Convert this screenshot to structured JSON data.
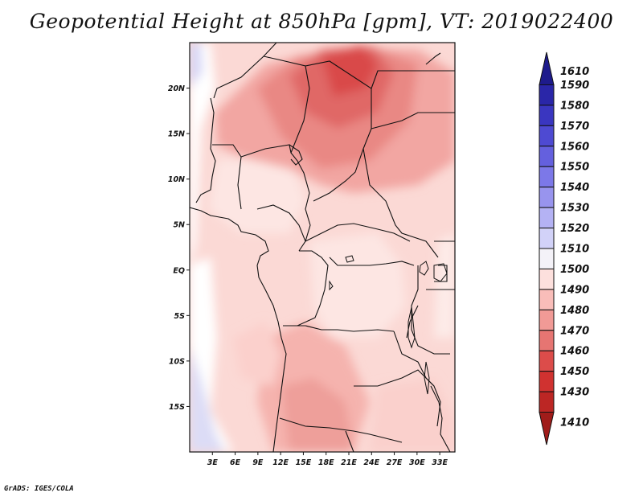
{
  "title": "Geopotential Height at 850hPa [gpm], VT: 2019022400",
  "footer": "GrADS: IGES/COLA",
  "map": {
    "lon_range": [
      0,
      35
    ],
    "lat_range": [
      -20,
      25
    ],
    "lat_ticks": [
      {
        "value": 20,
        "label": "20N"
      },
      {
        "value": 15,
        "label": "15N"
      },
      {
        "value": 10,
        "label": "10N"
      },
      {
        "value": 5,
        "label": "5N"
      },
      {
        "value": 0,
        "label": "EQ"
      },
      {
        "value": -5,
        "label": "5S"
      },
      {
        "value": -10,
        "label": "10S"
      },
      {
        "value": -15,
        "label": "15S"
      }
    ],
    "lon_ticks": [
      {
        "value": 3,
        "label": "3E"
      },
      {
        "value": 6,
        "label": "6E"
      },
      {
        "value": 9,
        "label": "9E"
      },
      {
        "value": 12,
        "label": "12E"
      },
      {
        "value": 15,
        "label": "15E"
      },
      {
        "value": 18,
        "label": "18E"
      },
      {
        "value": 21,
        "label": "21E"
      },
      {
        "value": 24,
        "label": "24E"
      },
      {
        "value": 27,
        "label": "27E"
      },
      {
        "value": 30,
        "label": "30E"
      },
      {
        "value": 33,
        "label": "33E"
      }
    ]
  },
  "colorbar": {
    "levels": [
      {
        "label": "1610",
        "color": "#1e1b8c"
      },
      {
        "label": "1590",
        "color": "#2a26a8"
      },
      {
        "label": "1580",
        "color": "#3a36c0"
      },
      {
        "label": "1570",
        "color": "#4e4ad2"
      },
      {
        "label": "1560",
        "color": "#6460de"
      },
      {
        "label": "1550",
        "color": "#7c78e8"
      },
      {
        "label": "1540",
        "color": "#9894ee"
      },
      {
        "label": "1530",
        "color": "#b4b2f4"
      },
      {
        "label": "1520",
        "color": "#d2d2f8"
      },
      {
        "label": "1510",
        "color": "#f4f2f8"
      },
      {
        "label": "1500",
        "color": "#fde0dd"
      },
      {
        "label": "1490",
        "color": "#f9bdb9"
      },
      {
        "label": "1480",
        "color": "#f19a96"
      },
      {
        "label": "1470",
        "color": "#e67572"
      },
      {
        "label": "1460",
        "color": "#dc4c4a"
      },
      {
        "label": "1450",
        "color": "#d03230"
      },
      {
        "label": "1430",
        "color": "#bc2624"
      },
      {
        "label": "1410",
        "color": "#a01c1a"
      }
    ]
  }
}
